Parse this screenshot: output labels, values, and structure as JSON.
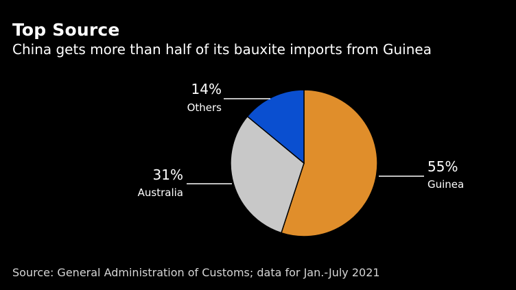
{
  "header": {
    "title": "Top Source",
    "subtitle": "China gets more than half of its bauxite imports from Guinea"
  },
  "footer": {
    "source": "Source: General Administration of Customs; data for Jan.-July 2021"
  },
  "chart_data": {
    "type": "pie",
    "title": "Top Source",
    "subtitle": "China gets more than half of its bauxite imports from Guinea",
    "slices": [
      {
        "name": "Guinea",
        "value": 55,
        "value_label": "55%",
        "color": "#E08E2B"
      },
      {
        "name": "Australia",
        "value": 31,
        "value_label": "31%",
        "color": "#C8C8C8"
      },
      {
        "name": "Others",
        "value": 14,
        "value_label": "14%",
        "color": "#0A4FD0"
      }
    ]
  }
}
